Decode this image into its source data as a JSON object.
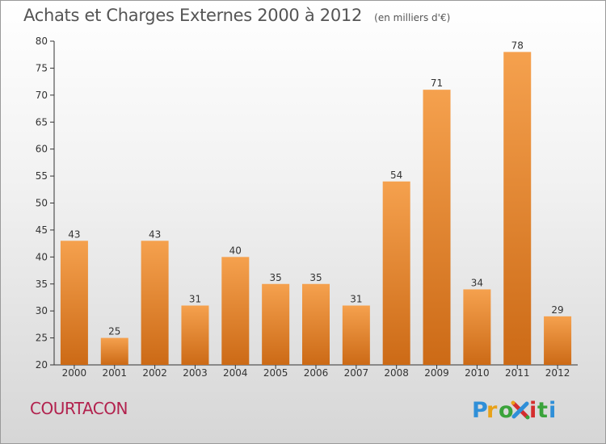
{
  "title": "Achats et Charges Externes 2000 à 2012",
  "unit": "(en milliers d'€)",
  "commune": "COURTACON",
  "logo": {
    "text": "Proxiti",
    "alt": "proxiti-logo"
  },
  "colors": {
    "bar_top": "#f5a14e",
    "bar_bottom": "#cc6a16",
    "commune": "#b2224e",
    "axis": "#333333"
  },
  "chart_data": {
    "type": "bar",
    "title": "Achats et Charges Externes 2000 à 2012",
    "subtitle": "(en milliers d'€)",
    "categories": [
      "2000",
      "2001",
      "2002",
      "2003",
      "2004",
      "2005",
      "2006",
      "2007",
      "2008",
      "2009",
      "2010",
      "2011",
      "2012"
    ],
    "values": [
      43,
      25,
      43,
      31,
      40,
      35,
      35,
      31,
      54,
      71,
      34,
      78,
      29
    ],
    "ylim": [
      20,
      80
    ],
    "yticks": [
      20,
      25,
      30,
      35,
      40,
      45,
      50,
      55,
      60,
      65,
      70,
      75,
      80
    ],
    "xlabel": "",
    "ylabel": "",
    "grid": false,
    "legend": "none"
  }
}
